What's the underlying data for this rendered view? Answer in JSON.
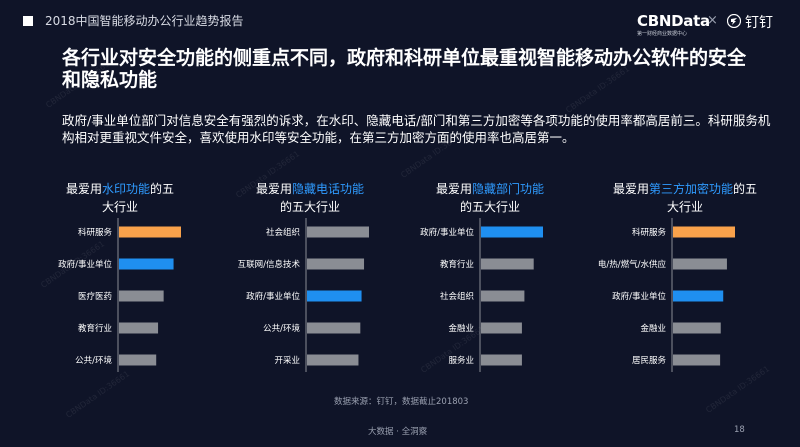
{
  "header": {
    "title": "2018中国智能移动办公行业趋势报告",
    "logo_cbn": "CBNData",
    "logo_cbn_sub": "第一财经商业数据中心",
    "logo_x": "×",
    "logo_ding": "钉钉"
  },
  "main": {
    "title": "各行业对安全功能的侧重点不同，政府和科研单位最重视智能移动办公软件的安全和隐私功能",
    "desc": "政府/事业单位部门对信息安全有强烈的诉求，在水印、隐藏电话/部门和第三方加密等各项功能的使用率都高居前三。科研服务机构相对更重视文件安全，喜欢使用水印等安全功能，在第三方加密方面的使用率也高居第一。"
  },
  "panels": [
    {
      "pre": "最爱用",
      "highlight": "水印功能",
      "post": "的五大行业"
    },
    {
      "pre": "最爱用",
      "highlight": "隐藏电话功能",
      "post": "的五大行业"
    },
    {
      "pre": "最爱用",
      "highlight": "隐藏部门功能",
      "post": "的五大行业"
    },
    {
      "pre": "最爱用",
      "highlight": "第三方加密功能",
      "post": "的五大行业"
    }
  ],
  "colors": {
    "orange": "#f9a24b",
    "blue": "#1f8ff0",
    "gray": "#8a8d94",
    "highlight_text": "#2f9bff"
  },
  "chart_data": [
    {
      "type": "bar",
      "orientation": "horizontal",
      "categories": [
        "科研服务",
        "政府/事业单位",
        "医疗医药",
        "教育行业",
        "公共/环境"
      ],
      "values": [
        100,
        88,
        72,
        63,
        60
      ],
      "colors": [
        "orange",
        "blue",
        "gray",
        "gray",
        "gray"
      ]
    },
    {
      "type": "bar",
      "orientation": "horizontal",
      "categories": [
        "社会组织",
        "互联网/信息技术",
        "政府/事业单位",
        "公共/环境",
        "开采业"
      ],
      "values": [
        100,
        92,
        88,
        86,
        83
      ],
      "colors": [
        "gray",
        "gray",
        "blue",
        "gray",
        "gray"
      ]
    },
    {
      "type": "bar",
      "orientation": "horizontal",
      "categories": [
        "政府/事业单位",
        "教育行业",
        "社会组织",
        "金融业",
        "服务业"
      ],
      "values": [
        100,
        85,
        70,
        66,
        66
      ],
      "colors": [
        "blue",
        "gray",
        "gray",
        "gray",
        "gray"
      ]
    },
    {
      "type": "bar",
      "orientation": "horizontal",
      "categories": [
        "科研服务",
        "电/热/燃气/水供应",
        "政府/事业单位",
        "金融业",
        "居民服务"
      ],
      "values": [
        100,
        87,
        81,
        77,
        76
      ],
      "colors": [
        "orange",
        "gray",
        "blue",
        "gray",
        "gray"
      ]
    }
  ],
  "source": "数据来源：钉钉，数据截止201803",
  "footer": {
    "text": "大数据 · 全洞察",
    "page": "18"
  },
  "watermark": "CBNData ID:36661"
}
